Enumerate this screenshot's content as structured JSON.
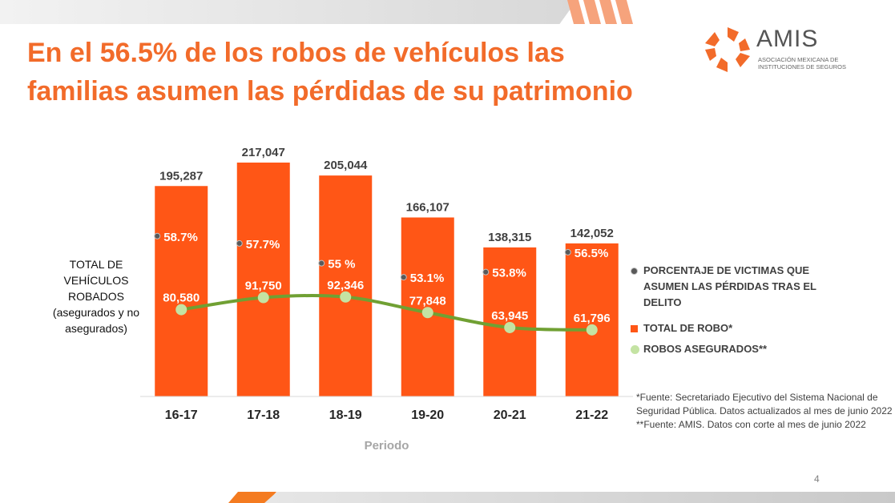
{
  "slide": {
    "title_line1": "En el 56.5% de los robos de vehículos las",
    "title_line2": "familias asumen las pérdidas de su patrimonio",
    "page_number": "4",
    "accent_color": "#f26b2a"
  },
  "logo": {
    "name": "AMIS",
    "subtitle_line1": "Asociación Mexicana de",
    "subtitle_line2": "Instituciones de Seguros",
    "icon": "amis-logo-icon"
  },
  "y_label": {
    "line1": "TOTAL  DE",
    "line2": "VEHÍCULOS",
    "line3": "ROBADOS",
    "line4": "(asegurados y no",
    "line5": "asegurados)"
  },
  "legend": {
    "pct": "PORCENTAJE DE VICTIMAS QUE ASUMEN LAS PÉRDIDAS TRAS EL DELITO",
    "total": "TOTAL DE ROBO*",
    "insured": "ROBOS ASEGURADOS**"
  },
  "sources": {
    "line1": "*Fuente: Secretariado Ejecutivo del Sistema Nacional de Seguridad Pública. Datos actualizados al mes de junio 2022",
    "line2": "**Fuente: AMIS. Datos con corte al mes de junio 2022"
  },
  "chart_data": {
    "type": "bar",
    "categories": [
      "16-17",
      "17-18",
      "18-19",
      "19-20",
      "20-21",
      "21-22"
    ],
    "xlabel": "Periodo",
    "ylabel": "TOTAL  DE VEHÍCULOS ROBADOS (asegurados y no asegurados)",
    "series": [
      {
        "name": "TOTAL DE ROBO*",
        "kind": "bar",
        "color": "#ff5616",
        "values": [
          195287,
          217047,
          205044,
          166107,
          138315,
          142052
        ],
        "labels": [
          "195,287",
          "217,047",
          "205,044",
          "166,107",
          "138,315",
          "142,052"
        ]
      },
      {
        "name": "ROBOS ASEGURADOS**",
        "kind": "line",
        "color": "#70a033",
        "marker_color": "#c4e3a3",
        "values": [
          80580,
          91750,
          92346,
          77848,
          63945,
          61796
        ],
        "labels": [
          "80,580",
          "91,750",
          "92,346",
          "77,848",
          "63,945",
          "61,796"
        ]
      },
      {
        "name": "PORCENTAJE DE VICTIMAS QUE ASUMEN LAS PÉRDIDAS TRAS EL DELITO",
        "kind": "marker",
        "color": "#595959",
        "values": [
          58.7,
          57.7,
          55,
          53.1,
          53.8,
          56.5
        ],
        "labels": [
          "58.7%",
          "57.7%",
          "55 %",
          "53.1%",
          "53.8%",
          "56.5%"
        ]
      }
    ],
    "ylim": [
      0,
      220000
    ],
    "grid": false,
    "legend_position": "right"
  }
}
